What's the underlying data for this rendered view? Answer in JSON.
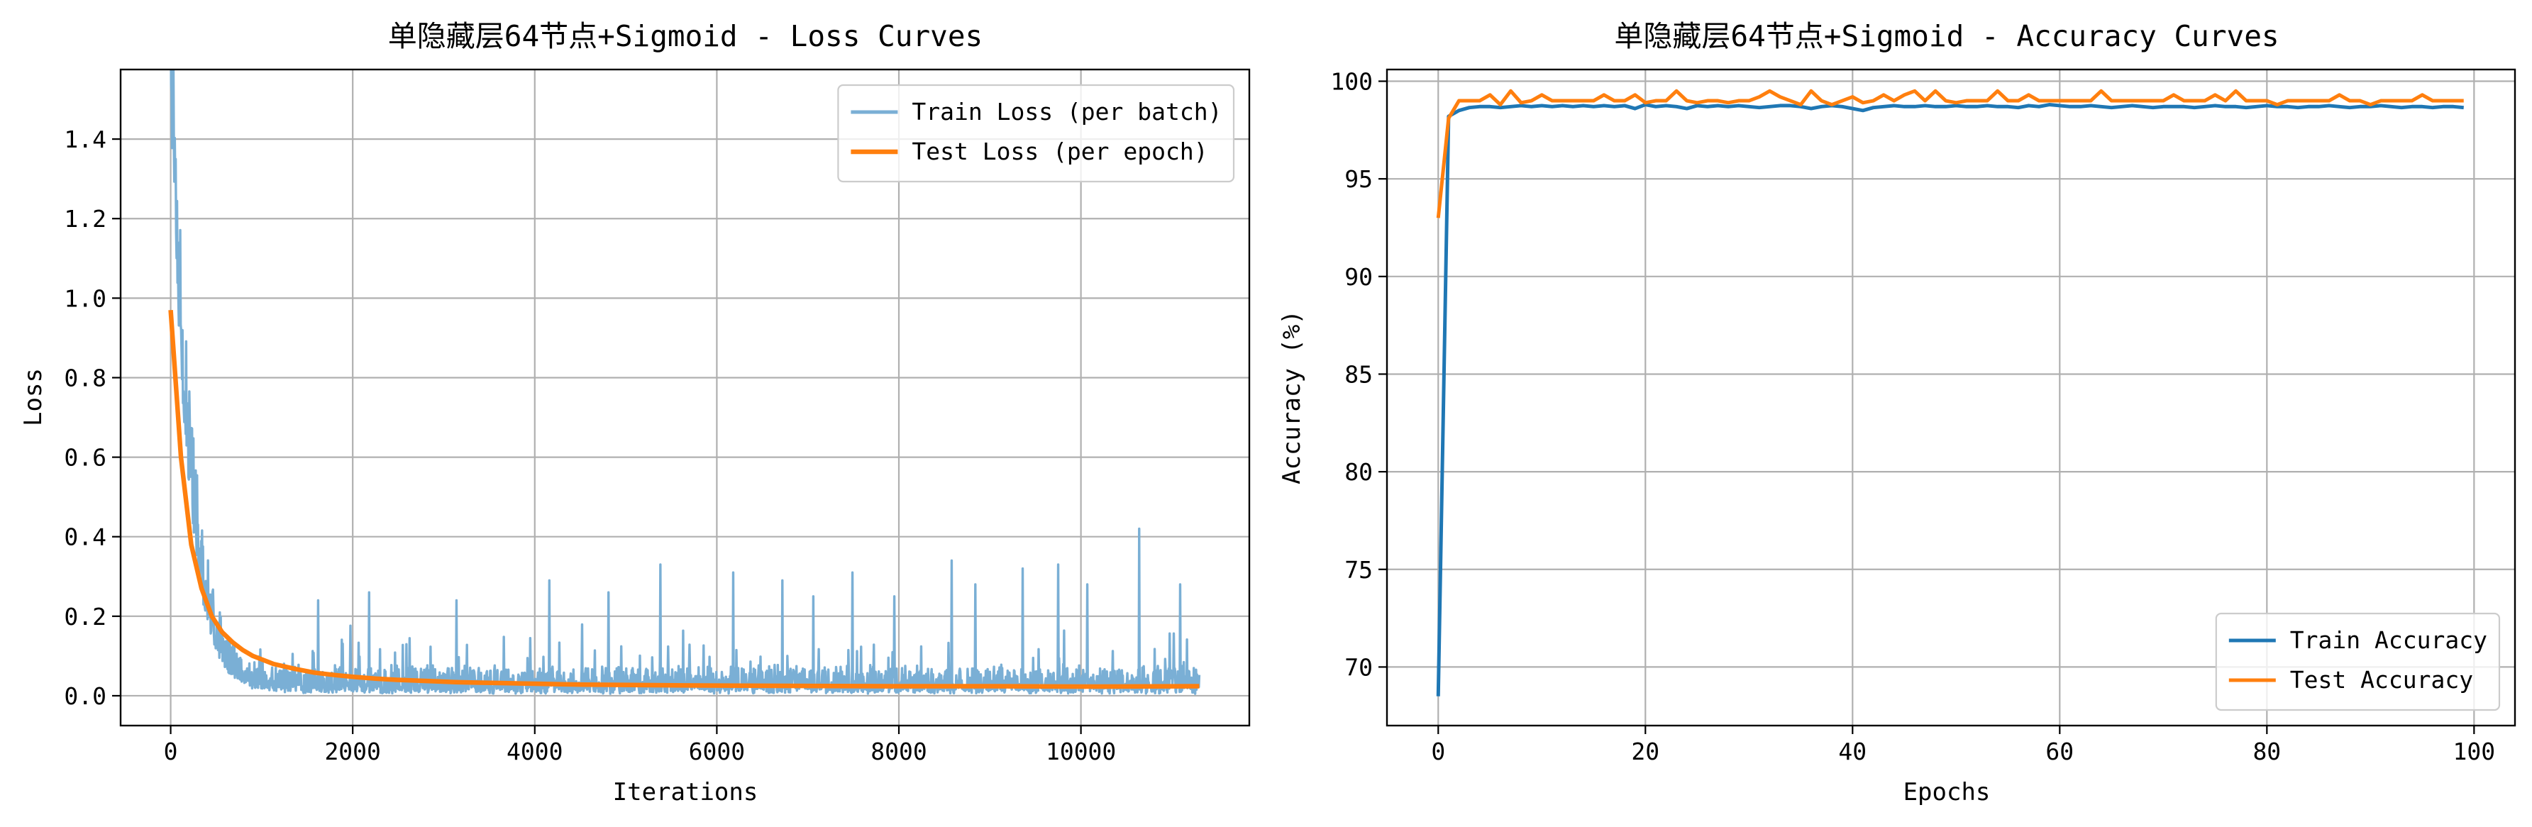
{
  "chart_data": [
    {
      "type": "line",
      "title": "单隐藏层64节点+Sigmoid - Loss Curves",
      "xlabel": "Iterations",
      "ylabel": "Loss",
      "xlim": [
        -550,
        11850
      ],
      "ylim": [
        -0.075,
        1.575
      ],
      "xticks": [
        0,
        2000,
        4000,
        6000,
        8000,
        10000
      ],
      "yticks": [
        0.0,
        0.2,
        0.4,
        0.6,
        0.8,
        1.0,
        1.2,
        1.4
      ],
      "grid": true,
      "legend": "top-right",
      "series": [
        {
          "name": "Train Loss (per batch)",
          "color": "#7aafd5",
          "style": "noisy-band",
          "n_points": 11300,
          "x_end": 11300,
          "start_value": 1.5,
          "spikes": [
            [
              1620,
              0.24
            ],
            [
              2180,
              0.26
            ],
            [
              3140,
              0.24
            ],
            [
              4160,
              0.29
            ],
            [
              4810,
              0.26
            ],
            [
              5380,
              0.33
            ],
            [
              6180,
              0.31
            ],
            [
              6720,
              0.29
            ],
            [
              7060,
              0.25
            ],
            [
              7490,
              0.31
            ],
            [
              7950,
              0.25
            ],
            [
              8580,
              0.34
            ],
            [
              8840,
              0.28
            ],
            [
              9360,
              0.32
            ],
            [
              9750,
              0.33
            ],
            [
              10070,
              0.28
            ],
            [
              10640,
              0.42
            ],
            [
              11090,
              0.28
            ]
          ]
        },
        {
          "name": "Test Loss (per epoch)",
          "color": "#ff7f0e",
          "x": [
            0,
            113,
            226,
            339,
            452,
            565,
            678,
            791,
            904,
            1017,
            1130,
            1356,
            1582,
            1808,
            2034,
            2260,
            2486,
            2712,
            2938,
            3164,
            3390,
            3616,
            3842,
            4068,
            4294,
            4520,
            5650,
            6780,
            7910,
            9040,
            10170,
            11300
          ],
          "y": [
            0.97,
            0.6,
            0.38,
            0.27,
            0.2,
            0.16,
            0.135,
            0.115,
            0.1,
            0.09,
            0.08,
            0.068,
            0.058,
            0.052,
            0.047,
            0.043,
            0.04,
            0.038,
            0.036,
            0.034,
            0.033,
            0.032,
            0.031,
            0.03,
            0.029,
            0.028,
            0.026,
            0.025,
            0.024,
            0.024,
            0.023,
            0.024
          ]
        }
      ]
    },
    {
      "type": "line",
      "title": "单隐藏层64节点+Sigmoid - Accuracy Curves",
      "xlabel": "Epochs",
      "ylabel": "Accuracy (%)",
      "xlim": [
        -4.95,
        103.95
      ],
      "ylim": [
        67.0,
        100.6
      ],
      "xticks": [
        0,
        20,
        40,
        60,
        80,
        100
      ],
      "yticks": [
        70,
        75,
        80,
        85,
        90,
        95,
        100
      ],
      "grid": true,
      "legend": "bottom-right",
      "series": [
        {
          "name": "Train Accuracy",
          "color": "#1f77b4",
          "x": [
            0,
            1,
            2,
            3,
            4,
            5,
            6,
            7,
            8,
            9,
            10,
            11,
            12,
            13,
            14,
            15,
            16,
            17,
            18,
            19,
            20,
            21,
            22,
            23,
            24,
            25,
            26,
            27,
            28,
            29,
            30,
            31,
            32,
            33,
            34,
            35,
            36,
            37,
            38,
            39,
            40,
            41,
            42,
            43,
            44,
            45,
            46,
            47,
            48,
            49,
            50,
            51,
            52,
            53,
            54,
            55,
            56,
            57,
            58,
            59,
            60,
            61,
            62,
            63,
            64,
            65,
            66,
            67,
            68,
            69,
            70,
            71,
            72,
            73,
            74,
            75,
            76,
            77,
            78,
            79,
            80,
            81,
            82,
            83,
            84,
            85,
            86,
            87,
            88,
            89,
            90,
            91,
            92,
            93,
            94,
            95,
            96,
            97,
            98,
            99
          ],
          "y": [
            68.5,
            98.2,
            98.5,
            98.65,
            98.7,
            98.7,
            98.65,
            98.7,
            98.75,
            98.7,
            98.75,
            98.7,
            98.75,
            98.7,
            98.75,
            98.7,
            98.75,
            98.7,
            98.75,
            98.6,
            98.8,
            98.7,
            98.75,
            98.7,
            98.6,
            98.75,
            98.7,
            98.75,
            98.7,
            98.75,
            98.7,
            98.65,
            98.7,
            98.75,
            98.75,
            98.7,
            98.6,
            98.7,
            98.75,
            98.7,
            98.6,
            98.5,
            98.65,
            98.7,
            98.75,
            98.7,
            98.7,
            98.75,
            98.7,
            98.7,
            98.75,
            98.7,
            98.7,
            98.75,
            98.7,
            98.7,
            98.65,
            98.75,
            98.7,
            98.8,
            98.75,
            98.7,
            98.7,
            98.75,
            98.7,
            98.65,
            98.7,
            98.75,
            98.7,
            98.65,
            98.7,
            98.7,
            98.7,
            98.65,
            98.7,
            98.75,
            98.7,
            98.7,
            98.65,
            98.7,
            98.75,
            98.7,
            98.7,
            98.65,
            98.7,
            98.7,
            98.75,
            98.7,
            98.65,
            98.7,
            98.7,
            98.75,
            98.7,
            98.65,
            98.7,
            98.7,
            98.65,
            98.7,
            98.7,
            98.65
          ]
        },
        {
          "name": "Test Accuracy",
          "color": "#ff7f0e",
          "x": [
            0,
            1,
            2,
            3,
            4,
            5,
            6,
            7,
            8,
            9,
            10,
            11,
            12,
            13,
            14,
            15,
            16,
            17,
            18,
            19,
            20,
            21,
            22,
            23,
            24,
            25,
            26,
            27,
            28,
            29,
            30,
            31,
            32,
            33,
            34,
            35,
            36,
            37,
            38,
            39,
            40,
            41,
            42,
            43,
            44,
            45,
            46,
            47,
            48,
            49,
            50,
            51,
            52,
            53,
            54,
            55,
            56,
            57,
            58,
            59,
            60,
            61,
            62,
            63,
            64,
            65,
            66,
            67,
            68,
            69,
            70,
            71,
            72,
            73,
            74,
            75,
            76,
            77,
            78,
            79,
            80,
            81,
            82,
            83,
            84,
            85,
            86,
            87,
            88,
            89,
            90,
            91,
            92,
            93,
            94,
            95,
            96,
            97,
            98,
            99
          ],
          "y": [
            93.0,
            98.1,
            99.0,
            99.0,
            99.0,
            99.3,
            98.8,
            99.5,
            98.9,
            99.0,
            99.3,
            99.0,
            99.0,
            99.0,
            99.0,
            99.0,
            99.3,
            99.0,
            99.0,
            99.3,
            98.9,
            99.0,
            99.0,
            99.5,
            99.0,
            98.9,
            99.0,
            99.0,
            98.9,
            99.0,
            99.0,
            99.2,
            99.5,
            99.2,
            99.0,
            98.8,
            99.5,
            99.0,
            98.8,
            99.0,
            99.2,
            98.9,
            99.0,
            99.3,
            99.0,
            99.3,
            99.5,
            99.0,
            99.5,
            99.0,
            98.9,
            99.0,
            99.0,
            99.0,
            99.5,
            99.0,
            99.0,
            99.3,
            99.0,
            99.0,
            99.0,
            99.0,
            99.0,
            99.0,
            99.5,
            99.0,
            99.0,
            99.0,
            99.0,
            99.0,
            99.0,
            99.3,
            99.0,
            99.0,
            99.0,
            99.3,
            99.0,
            99.5,
            99.0,
            99.0,
            99.0,
            98.8,
            99.0,
            99.0,
            99.0,
            99.0,
            99.0,
            99.3,
            99.0,
            99.0,
            98.8,
            99.0,
            99.0,
            99.0,
            99.0,
            99.3,
            99.0,
            99.0,
            99.0,
            99.0
          ]
        }
      ]
    }
  ]
}
